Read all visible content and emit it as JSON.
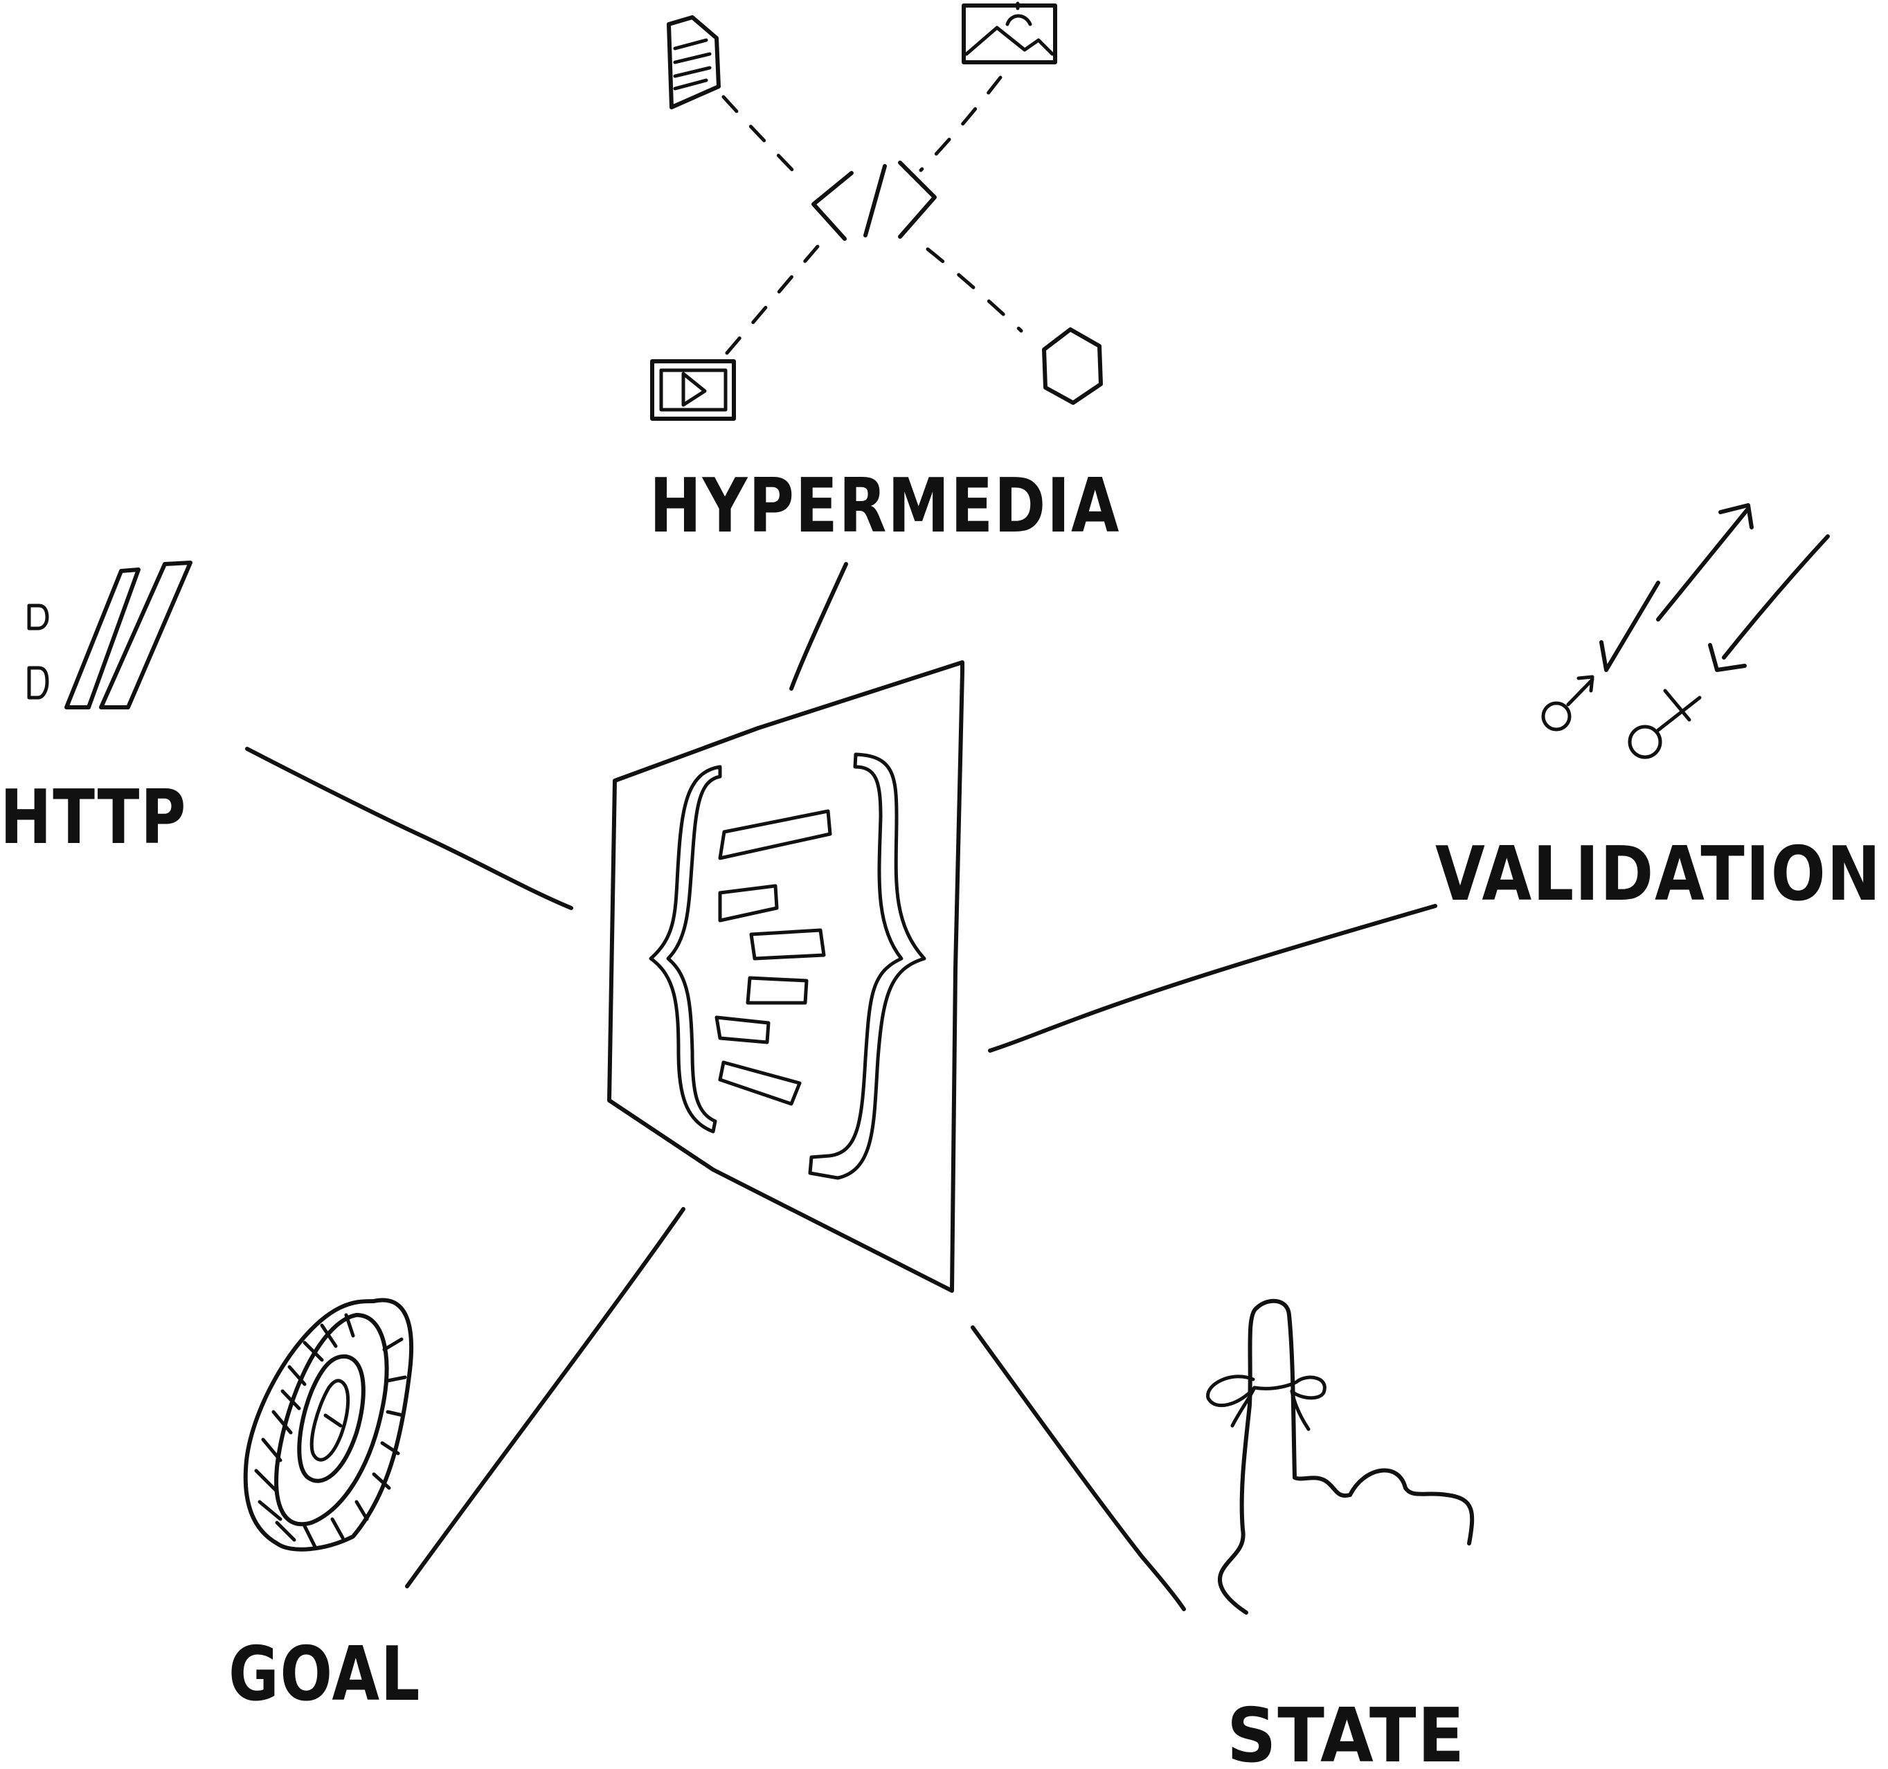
{
  "center": {
    "name": "json-document"
  },
  "nodes": [
    {
      "id": "hypermedia",
      "label": "HYPERMEDIA",
      "icon": "code-tag-icon"
    },
    {
      "id": "http",
      "label": "HTTP",
      "icon": "colon-double-slash-icon"
    },
    {
      "id": "validation",
      "label": "VALIDATION",
      "icon": "check-cross-arrows-icon"
    },
    {
      "id": "goal",
      "label": "GOAL",
      "icon": "target-ring-icon"
    },
    {
      "id": "state",
      "label": "STATE",
      "icon": "finger-string-icon"
    }
  ],
  "hypermedia_media_icons": [
    "document-icon",
    "image-icon",
    "video-icon",
    "hexagon-icon"
  ],
  "colors": {
    "ink": "#111111",
    "background": "#ffffff"
  }
}
